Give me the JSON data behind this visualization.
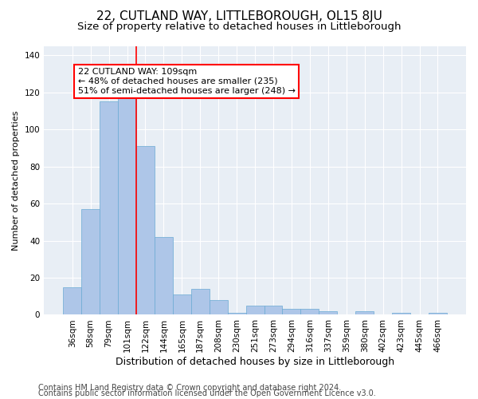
{
  "title": "22, CUTLAND WAY, LITTLEBOROUGH, OL15 8JU",
  "subtitle": "Size of property relative to detached houses in Littleborough",
  "xlabel": "Distribution of detached houses by size in Littleborough",
  "ylabel": "Number of detached properties",
  "categories": [
    "36sqm",
    "58sqm",
    "79sqm",
    "101sqm",
    "122sqm",
    "144sqm",
    "165sqm",
    "187sqm",
    "208sqm",
    "230sqm",
    "251sqm",
    "273sqm",
    "294sqm",
    "316sqm",
    "337sqm",
    "359sqm",
    "380sqm",
    "402sqm",
    "423sqm",
    "445sqm",
    "466sqm"
  ],
  "values": [
    15,
    57,
    115,
    118,
    91,
    42,
    11,
    14,
    8,
    1,
    5,
    5,
    3,
    3,
    2,
    0,
    2,
    0,
    1,
    0,
    1
  ],
  "bar_color": "#aec6e8",
  "bar_edge_color": "#6aaad4",
  "red_line_x": 3.5,
  "annotation_text": "22 CUTLAND WAY: 109sqm\n← 48% of detached houses are smaller (235)\n51% of semi-detached houses are larger (248) →",
  "annotation_box_color": "white",
  "annotation_box_edge": "red",
  "ylim": [
    0,
    145
  ],
  "yticks": [
    0,
    20,
    40,
    60,
    80,
    100,
    120,
    140
  ],
  "footer_line1": "Contains HM Land Registry data © Crown copyright and database right 2024.",
  "footer_line2": "Contains public sector information licensed under the Open Government Licence v3.0.",
  "bg_color": "#e8eef5",
  "fig_bg_color": "#ffffff",
  "grid_color": "#ffffff",
  "title_fontsize": 11,
  "subtitle_fontsize": 9.5,
  "xlabel_fontsize": 9,
  "ylabel_fontsize": 8,
  "tick_fontsize": 7.5,
  "annot_fontsize": 8,
  "footer_fontsize": 7
}
